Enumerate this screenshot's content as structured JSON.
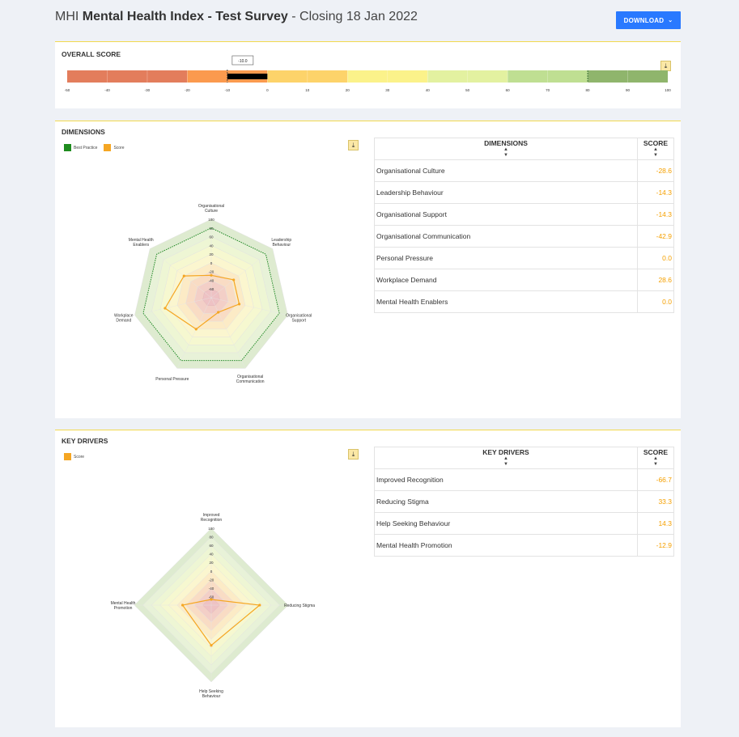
{
  "header": {
    "prefix": "MHI",
    "title": "Mental Health Index - Test Survey",
    "suffix": "- Closing 18 Jan 2022"
  },
  "download": {
    "label": "DOWNLOAD",
    "icon": "chevron-down-icon"
  },
  "overall": {
    "title": "OVERALL SCORE",
    "tooltip": "-10.0",
    "score": -10,
    "range": [
      -50,
      100
    ],
    "best_practice_marker": 80,
    "ticks": [
      "-50",
      "-40",
      "-30",
      "-20",
      "-10",
      "0",
      "10",
      "20",
      "30",
      "40",
      "50",
      "60",
      "70",
      "80",
      "90",
      "100"
    ],
    "band_colors": [
      "#e37d5c",
      "#fb9a4e",
      "#fdd36a",
      "#fbf28a",
      "#e3f1a0",
      "#bfdf92",
      "#8fb56c"
    ]
  },
  "dimensions": {
    "title": "DIMENSIONS",
    "legend": [
      {
        "label": "Best Practice",
        "color": "#1e8c1e"
      },
      {
        "label": "Score",
        "color": "#f5a623"
      }
    ],
    "table": {
      "col1": "DIMENSIONS",
      "col2": "SCORE",
      "rows": [
        {
          "name": "Organisational Culture",
          "score": "-28.6"
        },
        {
          "name": "Leadership Behaviour",
          "score": "-14.3"
        },
        {
          "name": "Organisational Support",
          "score": "-14.3"
        },
        {
          "name": "Organisational Communication",
          "score": "-42.9"
        },
        {
          "name": "Personal Pressure",
          "score": "0.0"
        },
        {
          "name": "Workplace Demand",
          "score": "28.6"
        },
        {
          "name": "Mental Health Enablers",
          "score": "0.0"
        }
      ]
    }
  },
  "key_drivers": {
    "title": "KEY DRIVERS",
    "legend": [
      {
        "label": "Score",
        "color": "#f5a623"
      }
    ],
    "table": {
      "col1": "KEY DRIVERS",
      "col2": "SCORE",
      "rows": [
        {
          "name": "Improved Recognition",
          "score": "-66.7"
        },
        {
          "name": "Reducing Stigma",
          "score": "33.3"
        },
        {
          "name": "Help Seeking Behaviour",
          "score": "14.3"
        },
        {
          "name": "Mental Health Promotion",
          "score": "-12.9"
        }
      ]
    }
  },
  "chart_data": [
    {
      "type": "bar",
      "title": "OVERALL SCORE",
      "values": [
        -10.0
      ],
      "xlim": [
        -50,
        100
      ]
    },
    {
      "type": "radar",
      "title": "DIMENSIONS",
      "categories": [
        "Organisational Culture",
        "Leadership Behaviour",
        "Organisational Support",
        "Organisational Communication",
        "Personal Pressure",
        "Workplace Demand",
        "Mental Health Enablers"
      ],
      "category_lines": [
        [
          "Organisational",
          "Culture"
        ],
        [
          "Leadership",
          "Behaviour"
        ],
        [
          "Organisational",
          "Support"
        ],
        [
          "Organisational",
          "Communication"
        ],
        [
          "Personal Pressure"
        ],
        [
          "Workplace",
          "Demand"
        ],
        [
          "Mental Health",
          "Enablers"
        ]
      ],
      "ticks": [
        "100",
        "80",
        "60",
        "40",
        "20",
        "0",
        "-20",
        "-40",
        "-60"
      ],
      "ylim": [
        -80,
        100
      ],
      "series": [
        {
          "name": "Best Practice",
          "values": [
            80,
            80,
            80,
            80,
            80,
            80,
            80
          ]
        },
        {
          "name": "Score",
          "values": [
            -28.6,
            -14.3,
            -14.3,
            -42.9,
            0.0,
            28.6,
            0.0
          ]
        }
      ]
    },
    {
      "type": "radar",
      "title": "KEY DRIVERS",
      "categories": [
        "Improved Recognition",
        "Reducing Stigma",
        "Help Seeking Behaviour",
        "Mental Health Promotion"
      ],
      "category_lines": [
        [
          "Improved",
          "Recognition"
        ],
        [
          "Reducing Stigma"
        ],
        [
          "Help Seeking",
          "Behaviour"
        ],
        [
          "Mental Health",
          "Promotion"
        ]
      ],
      "ticks": [
        "100",
        "80",
        "60",
        "40",
        "20",
        "0",
        "-20",
        "-40",
        "-60"
      ],
      "ylim": [
        -80,
        100
      ],
      "series": [
        {
          "name": "Score",
          "values": [
            -66.7,
            33.3,
            14.3,
            -12.9
          ]
        }
      ]
    }
  ]
}
